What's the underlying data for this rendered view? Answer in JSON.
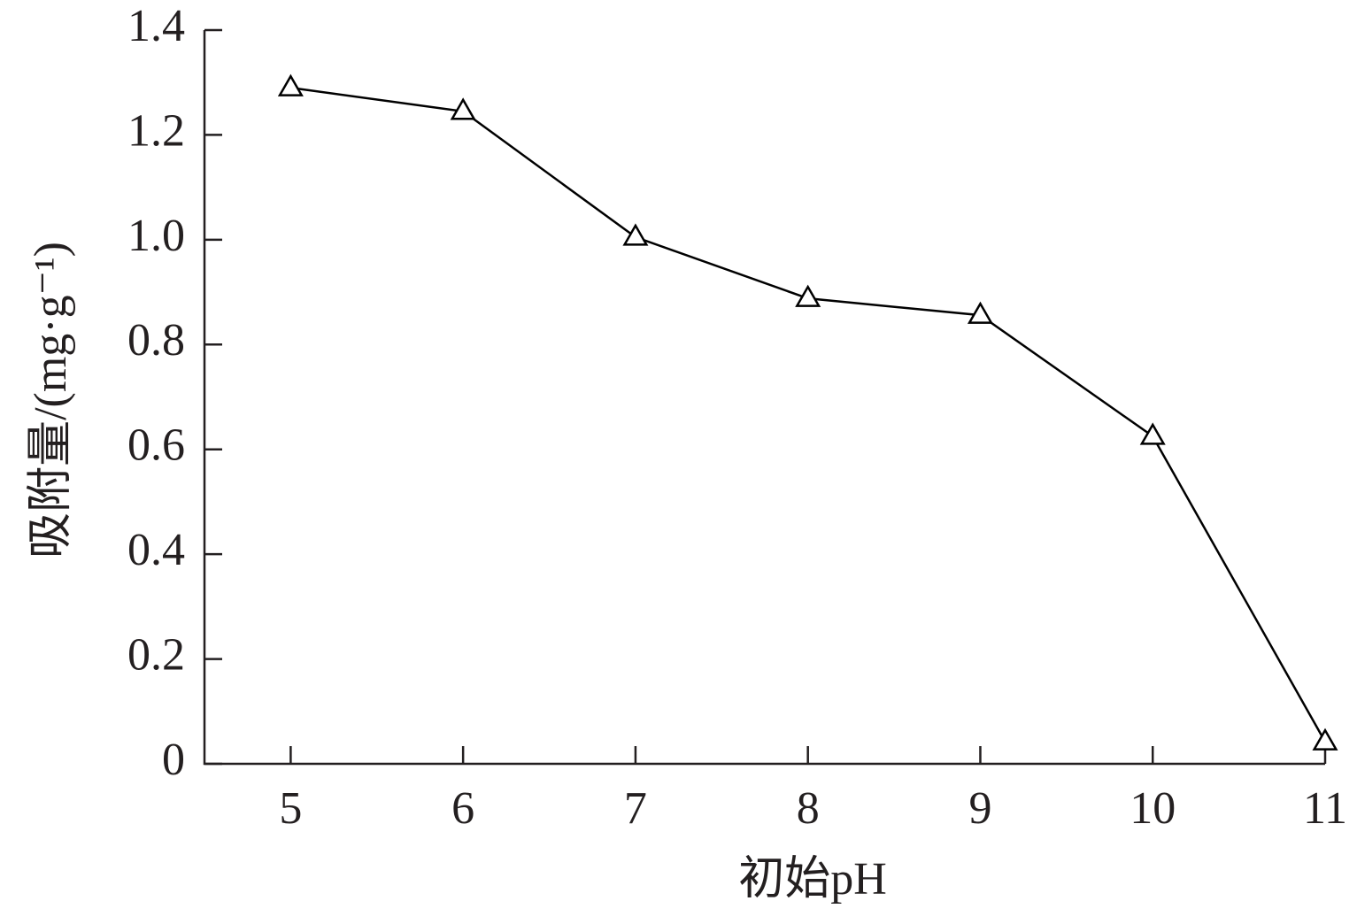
{
  "chart_data": {
    "type": "line",
    "x_label": "初始pH",
    "y_label": "吸附量/(mg·g⁻¹)",
    "x": [
      5,
      6,
      7,
      8,
      9,
      10,
      11
    ],
    "series": [
      {
        "values": [
          1.29,
          1.245,
          1.005,
          0.888,
          0.856,
          0.625,
          0.042
        ],
        "color": "#000000",
        "marker": "triangle"
      }
    ],
    "xlim": [
      4.5,
      11
    ],
    "xticks": [
      5,
      6,
      7,
      8,
      9,
      10,
      11
    ],
    "ylim": [
      0,
      1.4
    ],
    "yticks": [
      0,
      0.2,
      0.4,
      0.6,
      0.8,
      {
        "value": 1,
        "label": "1.0"
      },
      1.2,
      1.4
    ],
    "grid": false
  }
}
